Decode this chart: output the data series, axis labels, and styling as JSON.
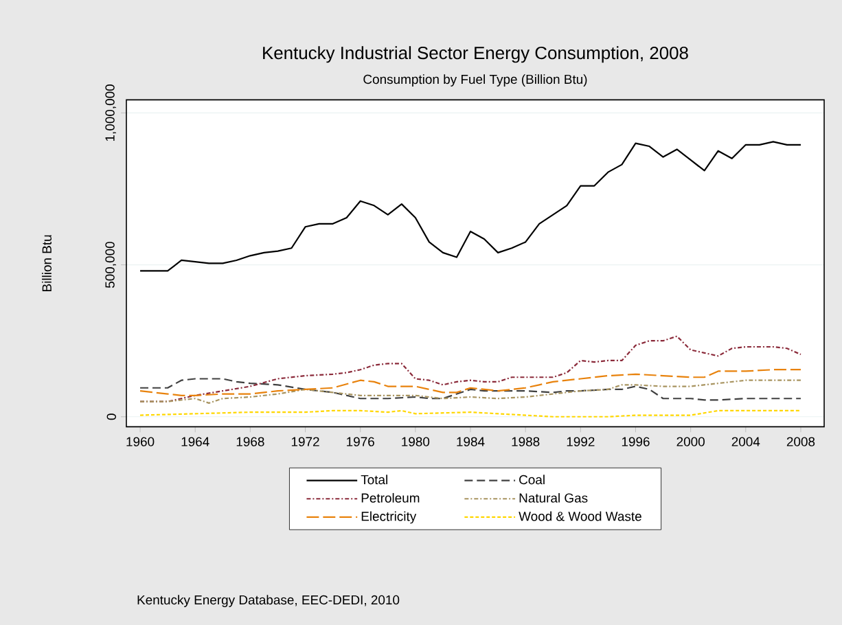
{
  "chart_data": {
    "type": "line",
    "title": "Kentucky Industrial Sector Energy Consumption, 2008",
    "subtitle": "Consumption by Fuel Type (Billion Btu)",
    "ylabel": "Billion Btu",
    "annotations": [
      "Kentucky Energy Database, EEC-DEDI, 2010"
    ],
    "xlim": [
      1959,
      2009.7
    ],
    "xticks": [
      1960,
      1964,
      1968,
      1972,
      1976,
      1980,
      1984,
      1988,
      1992,
      1996,
      2000,
      2004,
      2008
    ],
    "ylim": [
      -33000,
      1043000
    ],
    "yticks": [
      {
        "value": 0,
        "label": "0"
      },
      {
        "value": 500000,
        "label": "500,000"
      },
      {
        "value": 1000000,
        "label": "1,000,000"
      }
    ],
    "grid": "y",
    "legend": "bottom",
    "marker": "none",
    "series": [
      {
        "name": "Total",
        "color": "#000000",
        "line_style": "solid",
        "x": [
          1960,
          1961,
          1962,
          1963,
          1964,
          1965,
          1966,
          1967,
          1968,
          1969,
          1970,
          1971,
          1972,
          1973,
          1974,
          1975,
          1976,
          1977,
          1978,
          1979,
          1980,
          1981,
          1982,
          1983,
          1984,
          1985,
          1986,
          1987,
          1988,
          1989,
          1990,
          1991,
          1992,
          1993,
          1994,
          1995,
          1996,
          1997,
          1998,
          1999,
          2000,
          2001,
          2002,
          2003,
          2004,
          2005,
          2006,
          2007,
          2008
        ],
        "values": [
          480000,
          480000,
          480000,
          515000,
          510000,
          505000,
          505000,
          515000,
          530000,
          540000,
          545000,
          555000,
          625000,
          635000,
          635000,
          655000,
          710000,
          695000,
          665000,
          700000,
          655000,
          575000,
          540000,
          525000,
          610000,
          585000,
          540000,
          555000,
          575000,
          635000,
          665000,
          695000,
          760000,
          760000,
          805000,
          830000,
          900000,
          890000,
          855000,
          880000,
          845000,
          810000,
          875000,
          850000,
          895000,
          895000,
          905000,
          895000,
          895000
        ]
      },
      {
        "name": "Coal",
        "color": "#404040",
        "line_style": "dashed",
        "x": [
          1960,
          1962,
          1963,
          1964,
          1966,
          1967,
          1968,
          1970,
          1972,
          1973,
          1974,
          1976,
          1977,
          1978,
          1980,
          1981,
          1982,
          1984,
          1985,
          1987,
          1988,
          1990,
          1991,
          1992,
          1994,
          1995,
          1996,
          1997,
          1998,
          2000,
          2001,
          2002,
          2004,
          2006,
          2008
        ],
        "values": [
          95000,
          95000,
          120000,
          125000,
          125000,
          115000,
          110000,
          105000,
          90000,
          85000,
          80000,
          60000,
          60000,
          60000,
          65000,
          60000,
          60000,
          90000,
          85000,
          85000,
          85000,
          80000,
          85000,
          85000,
          90000,
          90000,
          100000,
          90000,
          60000,
          60000,
          55000,
          55000,
          60000,
          60000,
          60000
        ]
      },
      {
        "name": "Petroleum",
        "color": "#8b2a3a",
        "line_style": "dashdot",
        "x": [
          1960,
          1962,
          1964,
          1966,
          1968,
          1970,
          1972,
          1974,
          1975,
          1976,
          1977,
          1978,
          1979,
          1980,
          1981,
          1982,
          1983,
          1984,
          1985,
          1986,
          1987,
          1988,
          1989,
          1990,
          1991,
          1992,
          1993,
          1994,
          1995,
          1996,
          1997,
          1998,
          1999,
          2000,
          2001,
          2002,
          2003,
          2004,
          2005,
          2006,
          2007,
          2008
        ],
        "values": [
          50000,
          50000,
          70000,
          85000,
          100000,
          125000,
          135000,
          140000,
          145000,
          155000,
          170000,
          175000,
          175000,
          125000,
          120000,
          105000,
          115000,
          120000,
          115000,
          115000,
          130000,
          130000,
          130000,
          130000,
          145000,
          185000,
          180000,
          185000,
          185000,
          235000,
          250000,
          250000,
          265000,
          220000,
          210000,
          200000,
          225000,
          230000,
          230000,
          230000,
          225000,
          205000
        ]
      },
      {
        "name": "Natural Gas",
        "color": "#a89460",
        "line_style": "dashdot",
        "x": [
          1960,
          1962,
          1964,
          1965,
          1966,
          1968,
          1970,
          1972,
          1974,
          1976,
          1978,
          1980,
          1982,
          1984,
          1986,
          1988,
          1990,
          1992,
          1994,
          1995,
          1996,
          1998,
          2000,
          2002,
          2004,
          2006,
          2008
        ],
        "values": [
          50000,
          50000,
          60000,
          45000,
          60000,
          65000,
          75000,
          90000,
          80000,
          70000,
          70000,
          70000,
          60000,
          65000,
          60000,
          65000,
          75000,
          85000,
          90000,
          105000,
          105000,
          100000,
          100000,
          110000,
          120000,
          120000,
          120000
        ]
      },
      {
        "name": "Electricity",
        "color": "#e8820c",
        "line_style": "longdashed",
        "x": [
          1960,
          1962,
          1963,
          1964,
          1966,
          1968,
          1970,
          1972,
          1974,
          1976,
          1977,
          1978,
          1980,
          1982,
          1983,
          1984,
          1986,
          1988,
          1989,
          1990,
          1992,
          1994,
          1996,
          1998,
          2000,
          2001,
          2002,
          2004,
          2006,
          2008
        ],
        "values": [
          85000,
          75000,
          70000,
          70000,
          75000,
          75000,
          85000,
          90000,
          95000,
          120000,
          115000,
          100000,
          100000,
          80000,
          80000,
          95000,
          85000,
          95000,
          105000,
          115000,
          125000,
          135000,
          140000,
          135000,
          130000,
          130000,
          150000,
          150000,
          155000,
          155000
        ]
      },
      {
        "name": "Wood & Wood Waste",
        "color": "#ffd700",
        "line_style": "dotted",
        "x": [
          1960,
          1964,
          1968,
          1972,
          1974,
          1976,
          1978,
          1979,
          1980,
          1984,
          1988,
          1990,
          1994,
          1996,
          2000,
          2002,
          2006,
          2008
        ],
        "values": [
          5000,
          10000,
          15000,
          15000,
          20000,
          20000,
          15000,
          20000,
          10000,
          15000,
          5000,
          0,
          0,
          5000,
          5000,
          20000,
          20000,
          20000
        ]
      }
    ]
  }
}
